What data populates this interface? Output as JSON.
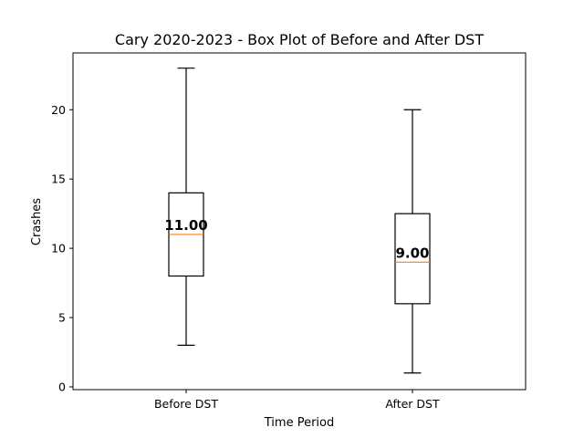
{
  "chart_data": {
    "type": "box",
    "title": "Cary 2020-2023 - Box Plot of Before and After DST",
    "xlabel": "Time Period",
    "ylabel": "Crashes",
    "ylim": [
      -0.2,
      24.1
    ],
    "yticks": [
      0,
      5,
      10,
      15,
      20
    ],
    "categories": [
      "Before DST",
      "After DST"
    ],
    "boxes": [
      {
        "name": "Before DST",
        "min": 3,
        "q1": 8,
        "median": 11,
        "q3": 14,
        "max": 23,
        "median_label": "11.00"
      },
      {
        "name": "After DST",
        "min": 1,
        "q1": 6,
        "median": 9,
        "q3": 12.5,
        "max": 20,
        "median_label": "9.00"
      }
    ],
    "median_color": "#ff7f0e",
    "box_color": "#000000",
    "grid": false,
    "legend": false
  }
}
